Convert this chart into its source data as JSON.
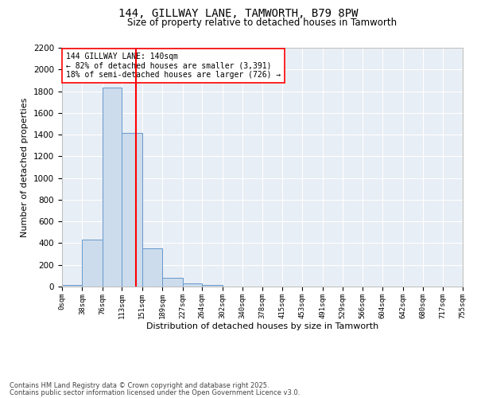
{
  "title_line1": "144, GILLWAY LANE, TAMWORTH, B79 8PW",
  "title_line2": "Size of property relative to detached houses in Tamworth",
  "xlabel": "Distribution of detached houses by size in Tamworth",
  "ylabel": "Number of detached properties",
  "footnote1": "Contains HM Land Registry data © Crown copyright and database right 2025.",
  "footnote2": "Contains public sector information licensed under the Open Government Licence v3.0.",
  "annotation_line1": "144 GILLWAY LANE: 140sqm",
  "annotation_line2": "← 82% of detached houses are smaller (3,391)",
  "annotation_line3": "18% of semi-detached houses are larger (726) →",
  "property_size": 140,
  "bar_color": "#ccdcec",
  "bar_edge_color": "#6699cc",
  "vline_color": "red",
  "background_color": "#e8eef5",
  "grid_color": "white",
  "ylim": [
    0,
    2200
  ],
  "yticks": [
    0,
    200,
    400,
    600,
    800,
    1000,
    1200,
    1400,
    1600,
    1800,
    2000,
    2200
  ],
  "bin_edges": [
    0,
    38,
    76,
    113,
    151,
    189,
    227,
    264,
    302,
    340,
    378,
    415,
    453,
    491,
    529,
    566,
    604,
    642,
    680,
    717,
    755
  ],
  "bar_heights": [
    15,
    430,
    1830,
    1415,
    355,
    80,
    33,
    15,
    0,
    0,
    0,
    0,
    0,
    0,
    0,
    0,
    0,
    0,
    0,
    0
  ]
}
